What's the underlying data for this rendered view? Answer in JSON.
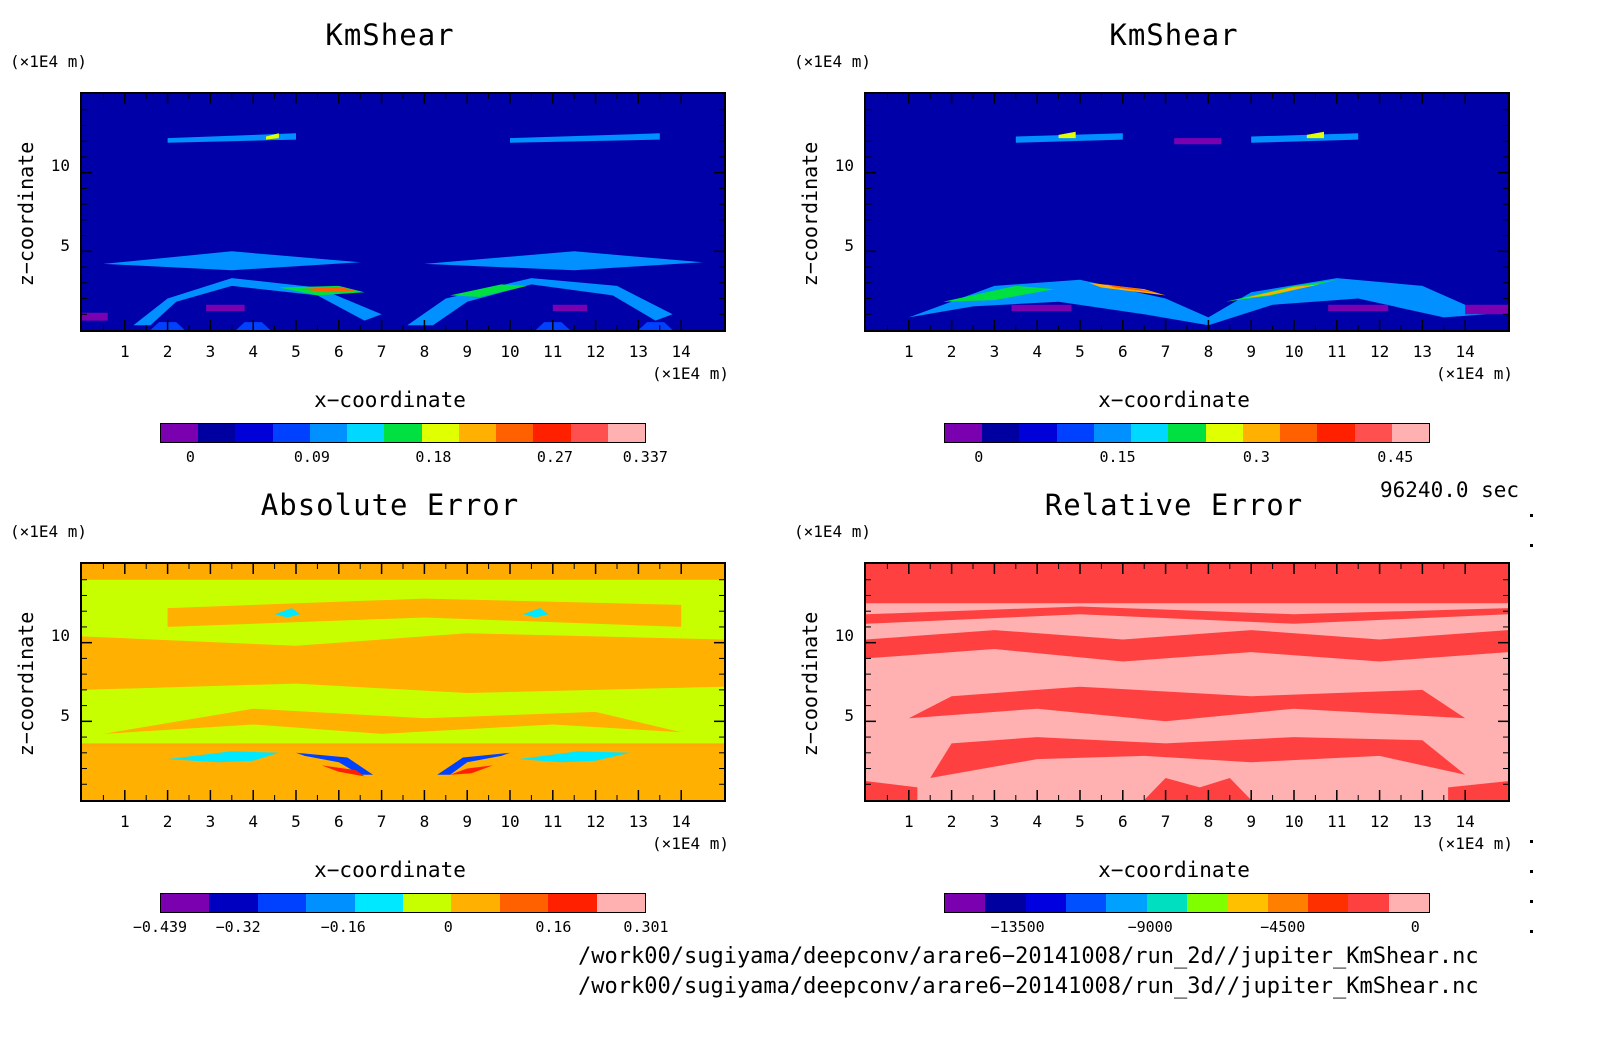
{
  "chart_data": [
    {
      "type": "heatmap",
      "title": "KmShear",
      "xlabel": "x−coordinate",
      "ylabel": "z−coordinate",
      "x_units": "(×1E4 m)",
      "y_units": "(×1E4 m)",
      "x_ticks": [
        "1",
        "2",
        "3",
        "4",
        "5",
        "6",
        "7",
        "8",
        "9",
        "10",
        "11",
        "12",
        "13",
        "14"
      ],
      "y_ticks": [
        "5",
        "10"
      ],
      "xlim": [
        0,
        15
      ],
      "ylim": [
        0,
        15
      ],
      "colorbar_ticks": [
        "0",
        "0.09",
        "0.18",
        "0.27",
        "0.337"
      ],
      "colorbar_range": [
        -0.0225,
        0.3375
      ],
      "colors": [
        "#7a00b0",
        "#0000a0",
        "#0000d8",
        "#0040ff",
        "#0090ff",
        "#00d8ff",
        "#00e040",
        "#e0ff00",
        "#ffb000",
        "#ff6000",
        "#ff2000",
        "#ff5050",
        "#ffb0b0"
      ],
      "background": "#0000a8"
    },
    {
      "type": "heatmap",
      "title": "KmShear",
      "xlabel": "x−coordinate",
      "ylabel": "z−coordinate",
      "x_units": "(×1E4 m)",
      "y_units": "(×1E4 m)",
      "x_ticks": [
        "1",
        "2",
        "3",
        "4",
        "5",
        "6",
        "7",
        "8",
        "9",
        "10",
        "11",
        "12",
        "13",
        "14"
      ],
      "y_ticks": [
        "5",
        "10"
      ],
      "xlim": [
        0,
        15
      ],
      "ylim": [
        0,
        15
      ],
      "colorbar_ticks": [
        "0",
        "0.15",
        "0.3",
        "0.45"
      ],
      "colorbar_range": [
        -0.0375,
        0.4875
      ],
      "colors": [
        "#7a00b0",
        "#0000a0",
        "#0000d8",
        "#0040ff",
        "#0090ff",
        "#00d8ff",
        "#00e040",
        "#e0ff00",
        "#ffb000",
        "#ff6000",
        "#ff2000",
        "#ff5050",
        "#ffb0b0"
      ],
      "background": "#0000a8"
    },
    {
      "type": "heatmap",
      "title": "Absolute Error",
      "xlabel": "x−coordinate",
      "ylabel": "z−coordinate",
      "x_units": "(×1E4 m)",
      "y_units": "(×1E4 m)",
      "x_ticks": [
        "1",
        "2",
        "3",
        "4",
        "5",
        "6",
        "7",
        "8",
        "9",
        "10",
        "11",
        "12",
        "13",
        "14"
      ],
      "y_ticks": [
        "5",
        "10"
      ],
      "xlim": [
        0,
        15
      ],
      "ylim": [
        0,
        15
      ],
      "colorbar_ticks": [
        "−0.439",
        "−0.32",
        "−0.16",
        "0",
        "0.16",
        "0.301"
      ],
      "colorbar_ticks_values": [
        -0.439,
        -0.32,
        -0.16,
        0,
        0.16,
        0.301
      ],
      "colorbar_range": [
        -0.439,
        0.301
      ],
      "colors": [
        "#7a00b0",
        "#0000c0",
        "#0040ff",
        "#0090ff",
        "#00e8ff",
        "#c8ff00",
        "#ffb000",
        "#ff6000",
        "#ff2000",
        "#ffb0b0"
      ],
      "background": "#ffaa00"
    },
    {
      "type": "heatmap",
      "title": "Relative Error",
      "xlabel": "x−coordinate",
      "ylabel": "z−coordinate",
      "x_units": "(×1E4 m)",
      "y_units": "(×1E4 m)",
      "x_ticks": [
        "1",
        "2",
        "3",
        "4",
        "5",
        "6",
        "7",
        "8",
        "9",
        "10",
        "11",
        "12",
        "13",
        "14"
      ],
      "y_ticks": [
        "5",
        "10"
      ],
      "xlim": [
        0,
        15
      ],
      "ylim": [
        0,
        15
      ],
      "colorbar_ticks": [
        "−13500",
        "−9000",
        "−4500",
        "0"
      ],
      "colorbar_ticks_values": [
        -13500,
        -9000,
        -4500,
        0
      ],
      "colorbar_range": [
        -16000,
        500
      ],
      "colors": [
        "#7a00b0",
        "#0000a0",
        "#0000e0",
        "#0050ff",
        "#00a0ff",
        "#00e0c0",
        "#80ff00",
        "#ffc000",
        "#ff8000",
        "#ff3000",
        "#ff4040",
        "#ffb0b0"
      ],
      "background": "#ffb0b0"
    }
  ],
  "time_label": "96240.0 sec",
  "file_paths": [
    "/work00/sugiyama/deepconv/arare6−20141008/run_2d//jupiter_KmShear.nc",
    "/work00/sugiyama/deepconv/arare6−20141008/run_3d//jupiter_KmShear.nc"
  ]
}
